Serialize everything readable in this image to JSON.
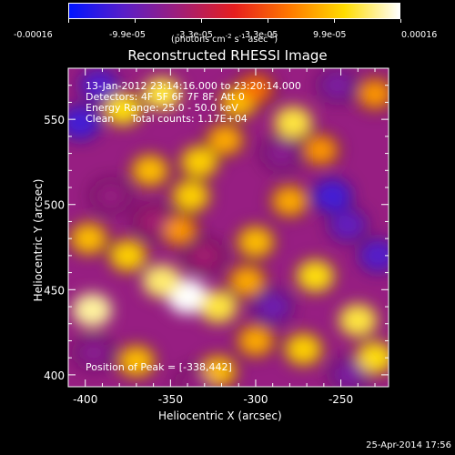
{
  "colorbar": {
    "tick_labels": [
      "-0.00016",
      "-9.9e-05",
      "-3.3e-05",
      "3.3e-05",
      "9.9e-05",
      "0.00016"
    ],
    "unit_base": "(photons cm",
    "unit_sup1": "-2",
    "unit_mid": " s",
    "unit_sup2": "-1",
    "unit_mid2": " asec",
    "unit_sup3": "-2",
    "unit_end": ")",
    "range": [
      -0.00016,
      0.00016
    ],
    "colors": [
      "#0014ff",
      "#5a1ec8",
      "#a01e78",
      "#e61e1e",
      "#ff7800",
      "#ffdc00",
      "#ffffff"
    ]
  },
  "title": "Reconstructed RHESSI Image",
  "annotations": {
    "time": "13-Jan-2012 23:14:16.000 to 23:20:14.000",
    "detectors": "Detectors: 4F 5F 6F 7F 8F, Att 0",
    "energy": "Energy Range: 25.0 - 50.0 keV",
    "clean": "Clean",
    "counts": "Total counts: 1.17E+04",
    "peak": "Position of Peak = [-338,442]"
  },
  "footer_date": "25-Apr-2014 17:56",
  "chart_data": {
    "type": "heatmap",
    "title": "Reconstructed RHESSI Image",
    "xlabel": "Heliocentric X (arcsec)",
    "ylabel": "Heliocentric Y (arcsec)",
    "xlim": [
      -410,
      -222
    ],
    "ylim": [
      393,
      580
    ],
    "xticks": [
      -400,
      -350,
      -300,
      -250
    ],
    "yticks": [
      400,
      450,
      500,
      550
    ],
    "xtick_labels": [
      "-400",
      "-350",
      "-300",
      "-250"
    ],
    "ytick_labels": [
      "400",
      "450",
      "500",
      "550"
    ],
    "colorbar_range": [
      -0.00016,
      0.00016
    ],
    "peak_position": [
      -338,
      442
    ],
    "blobs": [
      {
        "x": -340,
        "y": 446,
        "value": 0.00016
      },
      {
        "x": -355,
        "y": 455,
        "value": 0.00013
      },
      {
        "x": -322,
        "y": 440,
        "value": 0.00012
      },
      {
        "x": -396,
        "y": 438,
        "value": 0.00014
      },
      {
        "x": -375,
        "y": 470,
        "value": 0.0001
      },
      {
        "x": -398,
        "y": 480,
        "value": 9e-05
      },
      {
        "x": -370,
        "y": 408,
        "value": 9e-05
      },
      {
        "x": -322,
        "y": 402,
        "value": 9e-05
      },
      {
        "x": -378,
        "y": 556,
        "value": 0.00011
      },
      {
        "x": -355,
        "y": 565,
        "value": 0.00012
      },
      {
        "x": -362,
        "y": 520,
        "value": 9e-05
      },
      {
        "x": -333,
        "y": 525,
        "value": 0.0001
      },
      {
        "x": -338,
        "y": 505,
        "value": 0.0001
      },
      {
        "x": -310,
        "y": 560,
        "value": 9e-05
      },
      {
        "x": -318,
        "y": 538,
        "value": 8e-05
      },
      {
        "x": -300,
        "y": 478,
        "value": 9e-05
      },
      {
        "x": -305,
        "y": 455,
        "value": 8e-05
      },
      {
        "x": -278,
        "y": 548,
        "value": 0.00012
      },
      {
        "x": -262,
        "y": 532,
        "value": 7e-05
      },
      {
        "x": -280,
        "y": 502,
        "value": 8e-05
      },
      {
        "x": -300,
        "y": 568,
        "value": 5e-05
      },
      {
        "x": -265,
        "y": 458,
        "value": 0.00011
      },
      {
        "x": -272,
        "y": 415,
        "value": 0.0001
      },
      {
        "x": -240,
        "y": 432,
        "value": 0.00012
      },
      {
        "x": -230,
        "y": 410,
        "value": 0.00011
      },
      {
        "x": -230,
        "y": 565,
        "value": 7e-05
      },
      {
        "x": -300,
        "y": 420,
        "value": 8e-05
      },
      {
        "x": -345,
        "y": 485,
        "value": 7e-05
      },
      {
        "x": -392,
        "y": 570,
        "value": -0.00011
      },
      {
        "x": -403,
        "y": 548,
        "value": -0.00012
      },
      {
        "x": -385,
        "y": 505,
        "value": -6e-05
      },
      {
        "x": -360,
        "y": 490,
        "value": -5e-05
      },
      {
        "x": -255,
        "y": 505,
        "value": -0.00012
      },
      {
        "x": -246,
        "y": 488,
        "value": -0.0001
      },
      {
        "x": -228,
        "y": 470,
        "value": -0.00011
      },
      {
        "x": -290,
        "y": 440,
        "value": -9e-05
      },
      {
        "x": -285,
        "y": 530,
        "value": -7e-05
      },
      {
        "x": -252,
        "y": 570,
        "value": -8e-05
      },
      {
        "x": -395,
        "y": 413,
        "value": -7e-05
      },
      {
        "x": -330,
        "y": 470,
        "value": -5e-05
      },
      {
        "x": -245,
        "y": 400,
        "value": -8e-05
      },
      {
        "x": -335,
        "y": 395,
        "value": -6e-05
      }
    ]
  }
}
